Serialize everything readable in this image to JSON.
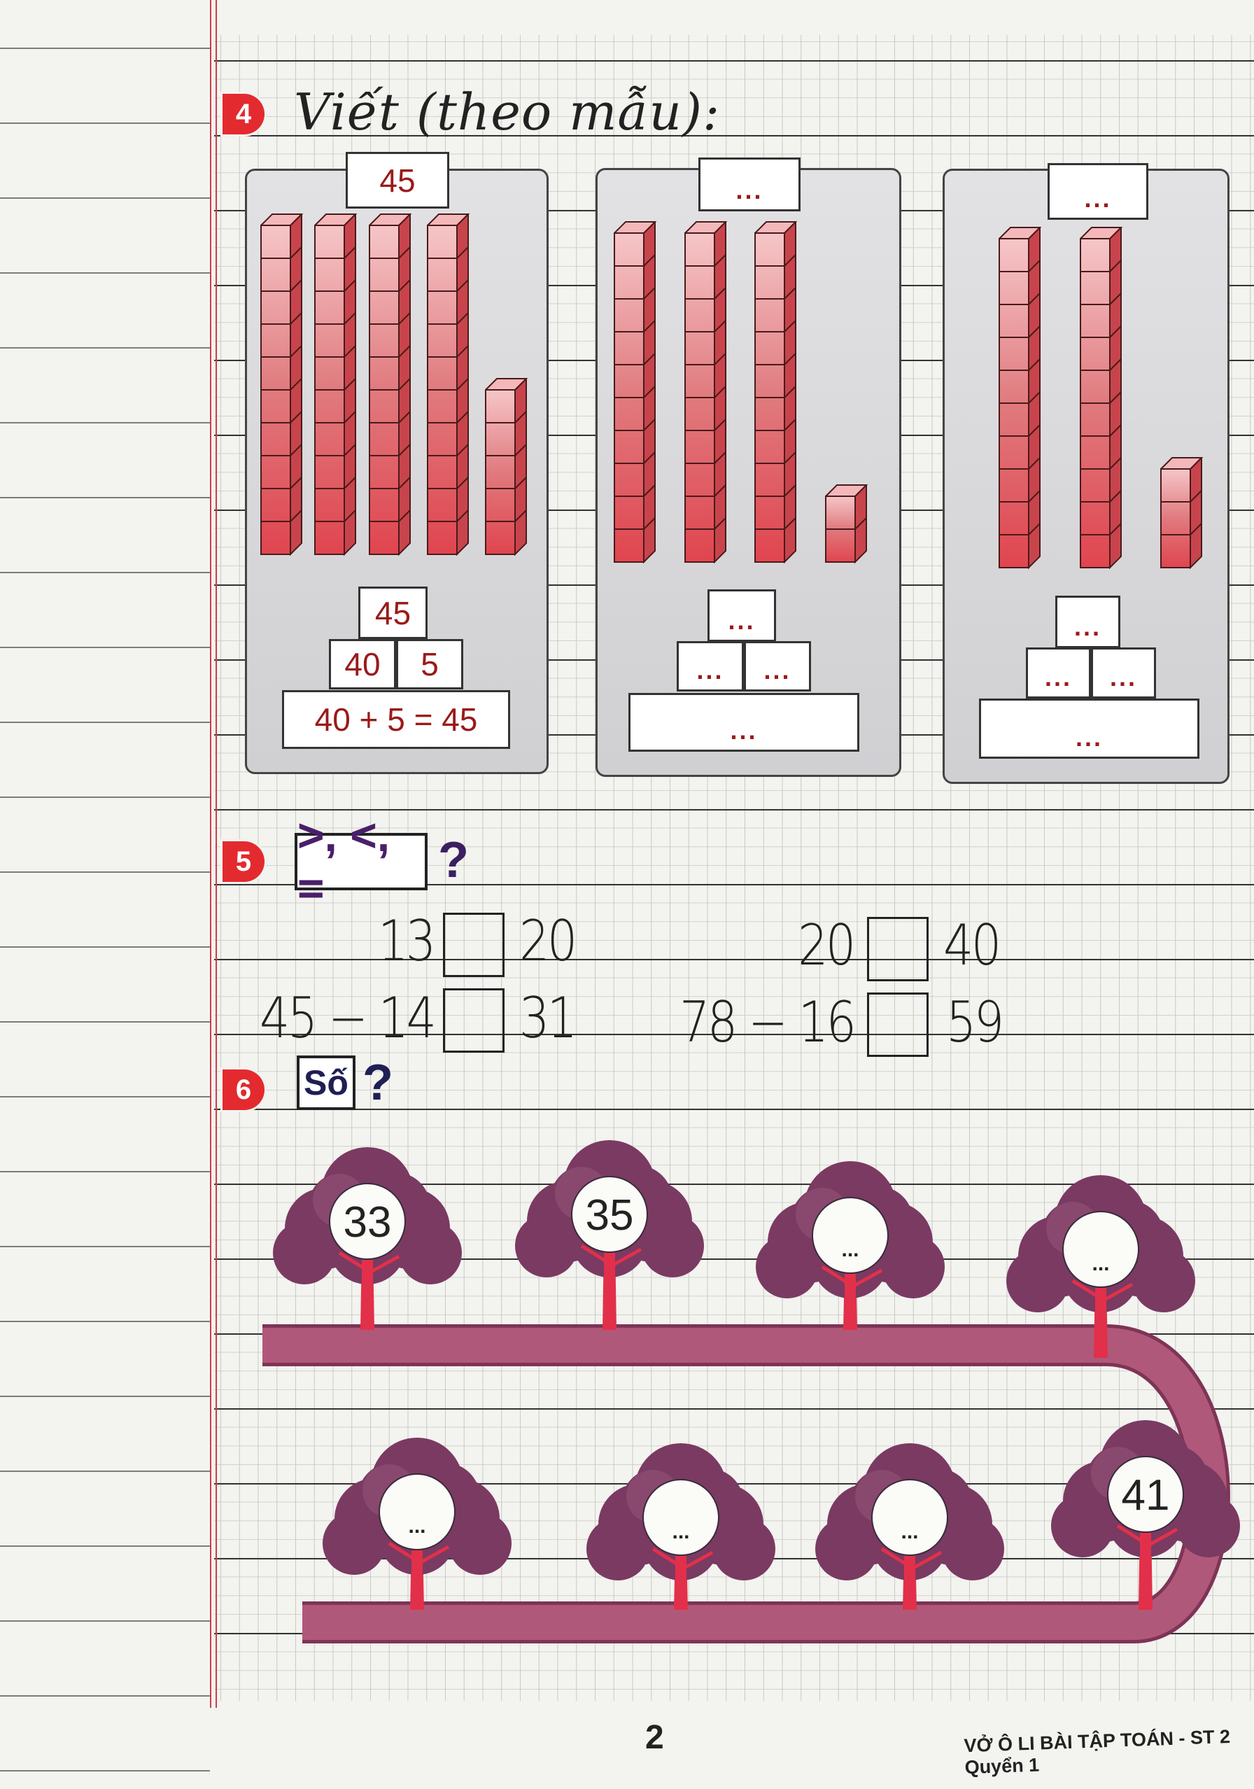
{
  "exercise4": {
    "number": "4",
    "title": "Viết (theo mẫu):",
    "panels": [
      {
        "top": "45",
        "tens": 4,
        "ones": 5,
        "pyramid_top": "45",
        "left": "40",
        "right": "5",
        "equation": "40 + 5 = 45"
      },
      {
        "top": "...",
        "tens": 3,
        "ones": 2,
        "pyramid_top": "...",
        "left": "...",
        "right": "...",
        "equation": "..."
      },
      {
        "top": "...",
        "tens": 2,
        "ones": 3,
        "pyramid_top": "...",
        "left": "...",
        "right": "...",
        "equation": "..."
      }
    ]
  },
  "exercise5": {
    "number": "5",
    "symbols": ">, <, =",
    "question_mark": "?",
    "items": [
      {
        "left": "13",
        "right": "20"
      },
      {
        "left": "20",
        "right": "40"
      },
      {
        "left": "45 − 14",
        "right": "31"
      },
      {
        "left": "78 − 16",
        "right": "59"
      }
    ]
  },
  "exercise6": {
    "number": "6",
    "label": "Số",
    "question_mark": "?",
    "trees": [
      "33",
      "35",
      "...",
      "...",
      "41",
      "...",
      "...",
      "..."
    ]
  },
  "colors": {
    "badge": "#e32a2f",
    "cube": "#e0454f",
    "tree": "#7a3a62",
    "trunk": "#e2304a",
    "road": "#b0587a"
  },
  "footer": {
    "page": "2",
    "book": "VỞ Ô LI BÀI TẬP TOÁN - ST 2 Quyển 1"
  }
}
